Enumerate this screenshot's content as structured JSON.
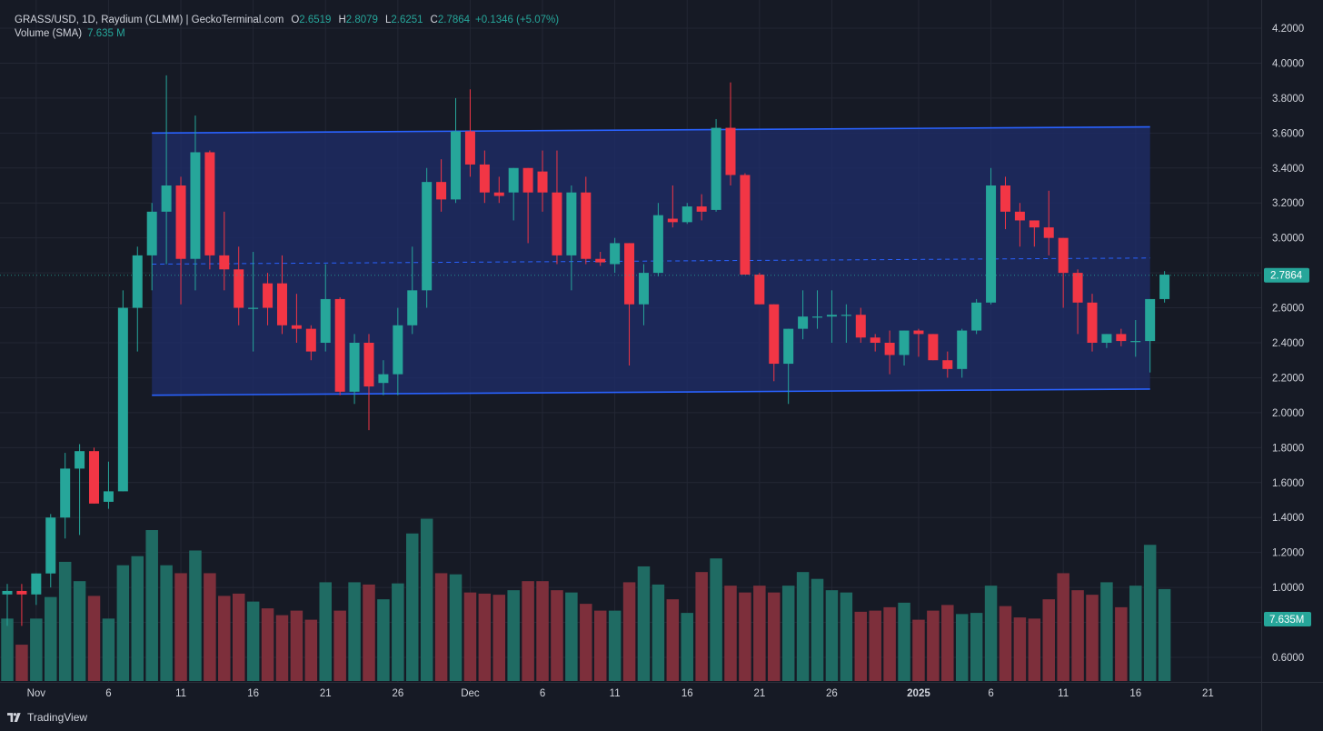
{
  "legend": {
    "title": "GRASS/USD, 1D, Raydium (CLMM) | GeckoTerminal.com",
    "o_label": "O",
    "o_value": "2.6519",
    "h_label": "H",
    "h_value": "2.8079",
    "l_label": "L",
    "l_value": "2.6251",
    "c_label": "C",
    "c_value": "2.7864",
    "change": "+0.1346 (+5.07%)",
    "volume_label": "Volume (SMA)",
    "volume_value": "7.635 M"
  },
  "footer": {
    "brand": "TradingView"
  },
  "colors": {
    "background": "#161a25",
    "up": "#26a69a",
    "down": "#f23645",
    "volume_up": "#1f6b63",
    "volume_down": "#7d2f3b",
    "channel_line": "#2962ff",
    "channel_fill": "#1f2e6b",
    "grid": "#232734",
    "text": "#d1d4dc",
    "price_label_bg": "#26a69a"
  },
  "chart_data": {
    "type": "candlestick",
    "title": "GRASS/USD, 1D, Raydium (CLMM) | GeckoTerminal.com",
    "y_axis": {
      "range": [
        0.46,
        4.26
      ],
      "ticks": [
        "0.6000",
        "0.8000",
        "1.0000",
        "1.2000",
        "1.4000",
        "1.6000",
        "1.8000",
        "2.0000",
        "2.2000",
        "2.4000",
        "2.6000",
        "2.8000",
        "3.0000",
        "3.2000",
        "3.4000",
        "3.6000",
        "3.8000",
        "4.0000",
        "4.2000"
      ],
      "tick_values": [
        0.6,
        0.8,
        1.0,
        1.2,
        1.4,
        1.6,
        1.8,
        2.0,
        2.2,
        2.4,
        2.6,
        2.8,
        3.0,
        3.2,
        3.4,
        3.6,
        3.8,
        4.0,
        4.2
      ]
    },
    "x_axis": {
      "start_date": "2024-10-30",
      "labels": [
        {
          "text": "Nov",
          "day": 2
        },
        {
          "text": "6",
          "day": 7
        },
        {
          "text": "11",
          "day": 12
        },
        {
          "text": "16",
          "day": 17
        },
        {
          "text": "21",
          "day": 22
        },
        {
          "text": "26",
          "day": 27
        },
        {
          "text": "Dec",
          "day": 32
        },
        {
          "text": "6",
          "day": 37
        },
        {
          "text": "11",
          "day": 42
        },
        {
          "text": "16",
          "day": 47
        },
        {
          "text": "21",
          "day": 52
        },
        {
          "text": "26",
          "day": 57
        },
        {
          "text": "2025",
          "day": 63,
          "bold": true
        },
        {
          "text": "6",
          "day": 68
        },
        {
          "text": "11",
          "day": 73
        },
        {
          "text": "16",
          "day": 78
        },
        {
          "text": "21",
          "day": 83
        }
      ]
    },
    "volume_scale_max": 1.33,
    "candles": [
      {
        "o": 0.96,
        "h": 1.02,
        "l": 0.78,
        "c": 0.98,
        "v": 0.55
      },
      {
        "o": 0.98,
        "h": 1.02,
        "l": 0.78,
        "c": 0.96,
        "v": 0.32
      },
      {
        "o": 0.96,
        "h": 1.08,
        "l": 0.9,
        "c": 1.08,
        "v": 0.55
      },
      {
        "o": 1.08,
        "h": 1.42,
        "l": 1.0,
        "c": 1.4,
        "v": 0.74
      },
      {
        "o": 1.4,
        "h": 1.77,
        "l": 1.28,
        "c": 1.68,
        "v": 1.05
      },
      {
        "o": 1.68,
        "h": 1.82,
        "l": 1.3,
        "c": 1.78,
        "v": 0.88
      },
      {
        "o": 1.78,
        "h": 1.8,
        "l": 1.48,
        "c": 1.48,
        "v": 0.75
      },
      {
        "o": 1.49,
        "h": 1.72,
        "l": 1.45,
        "c": 1.55,
        "v": 0.55
      },
      {
        "o": 1.55,
        "h": 2.7,
        "l": 1.55,
        "c": 2.6,
        "v": 1.02
      },
      {
        "o": 2.6,
        "h": 2.95,
        "l": 2.35,
        "c": 2.9,
        "v": 1.1
      },
      {
        "o": 2.9,
        "h": 3.2,
        "l": 2.7,
        "c": 3.15,
        "v": 1.33
      },
      {
        "o": 3.15,
        "h": 3.93,
        "l": 2.85,
        "c": 3.3,
        "v": 1.02
      },
      {
        "o": 3.3,
        "h": 3.35,
        "l": 2.62,
        "c": 2.88,
        "v": 0.95
      },
      {
        "o": 2.88,
        "h": 3.7,
        "l": 2.7,
        "c": 3.49,
        "v": 1.15
      },
      {
        "o": 3.49,
        "h": 3.5,
        "l": 2.82,
        "c": 2.9,
        "v": 0.95
      },
      {
        "o": 2.9,
        "h": 3.15,
        "l": 2.7,
        "c": 2.82,
        "v": 0.75
      },
      {
        "o": 2.82,
        "h": 2.95,
        "l": 2.5,
        "c": 2.6,
        "v": 0.77
      },
      {
        "o": 2.6,
        "h": 2.92,
        "l": 2.35,
        "c": 2.6,
        "v": 0.7
      },
      {
        "o": 2.74,
        "h": 2.8,
        "l": 2.5,
        "c": 2.6,
        "v": 0.64
      },
      {
        "o": 2.74,
        "h": 2.9,
        "l": 2.45,
        "c": 2.5,
        "v": 0.58
      },
      {
        "o": 2.5,
        "h": 2.68,
        "l": 2.4,
        "c": 2.48,
        "v": 0.62
      },
      {
        "o": 2.48,
        "h": 2.5,
        "l": 2.3,
        "c": 2.35,
        "v": 0.54
      },
      {
        "o": 2.4,
        "h": 2.85,
        "l": 2.35,
        "c": 2.65,
        "v": 0.87
      },
      {
        "o": 2.65,
        "h": 2.66,
        "l": 2.1,
        "c": 2.12,
        "v": 0.62
      },
      {
        "o": 2.12,
        "h": 2.45,
        "l": 2.05,
        "c": 2.4,
        "v": 0.87
      },
      {
        "o": 2.4,
        "h": 2.45,
        "l": 1.9,
        "c": 2.15,
        "v": 0.85
      },
      {
        "o": 2.17,
        "h": 2.3,
        "l": 2.1,
        "c": 2.22,
        "v": 0.72
      },
      {
        "o": 2.22,
        "h": 2.6,
        "l": 2.1,
        "c": 2.5,
        "v": 0.86
      },
      {
        "o": 2.5,
        "h": 2.95,
        "l": 2.45,
        "c": 2.7,
        "v": 1.3
      },
      {
        "o": 2.7,
        "h": 3.4,
        "l": 2.6,
        "c": 3.32,
        "v": 1.43
      },
      {
        "o": 3.32,
        "h": 3.45,
        "l": 3.15,
        "c": 3.22,
        "v": 0.95
      },
      {
        "o": 3.22,
        "h": 3.8,
        "l": 3.2,
        "c": 3.61,
        "v": 0.94
      },
      {
        "o": 3.61,
        "h": 3.85,
        "l": 3.35,
        "c": 3.42,
        "v": 0.78
      },
      {
        "o": 3.42,
        "h": 3.5,
        "l": 3.2,
        "c": 3.26,
        "v": 0.77
      },
      {
        "o": 3.26,
        "h": 3.35,
        "l": 3.2,
        "c": 3.24,
        "v": 0.76
      },
      {
        "o": 3.26,
        "h": 3.4,
        "l": 3.1,
        "c": 3.4,
        "v": 0.8
      },
      {
        "o": 3.4,
        "h": 3.4,
        "l": 2.97,
        "c": 3.26,
        "v": 0.88
      },
      {
        "o": 3.38,
        "h": 3.5,
        "l": 3.15,
        "c": 3.26,
        "v": 0.88
      },
      {
        "o": 3.26,
        "h": 3.5,
        "l": 2.85,
        "c": 2.9,
        "v": 0.8
      },
      {
        "o": 2.9,
        "h": 3.3,
        "l": 2.7,
        "c": 3.26,
        "v": 0.78
      },
      {
        "o": 3.26,
        "h": 3.35,
        "l": 2.85,
        "c": 2.88,
        "v": 0.68
      },
      {
        "o": 2.88,
        "h": 2.92,
        "l": 2.84,
        "c": 2.86,
        "v": 0.62
      },
      {
        "o": 2.85,
        "h": 3.0,
        "l": 2.8,
        "c": 2.97,
        "v": 0.62
      },
      {
        "o": 2.97,
        "h": 2.97,
        "l": 2.27,
        "c": 2.62,
        "v": 0.87
      },
      {
        "o": 2.62,
        "h": 2.85,
        "l": 2.5,
        "c": 2.8,
        "v": 1.01
      },
      {
        "o": 2.8,
        "h": 3.2,
        "l": 2.78,
        "c": 3.13,
        "v": 0.85
      },
      {
        "o": 3.11,
        "h": 3.3,
        "l": 3.06,
        "c": 3.09,
        "v": 0.72
      },
      {
        "o": 3.09,
        "h": 3.2,
        "l": 3.08,
        "c": 3.18,
        "v": 0.6
      },
      {
        "o": 3.18,
        "h": 3.25,
        "l": 3.1,
        "c": 3.15,
        "v": 0.96
      },
      {
        "o": 3.16,
        "h": 3.68,
        "l": 3.15,
        "c": 3.63,
        "v": 1.08
      },
      {
        "o": 3.63,
        "h": 3.89,
        "l": 3.3,
        "c": 3.36,
        "v": 0.84
      },
      {
        "o": 3.36,
        "h": 3.37,
        "l": 2.79,
        "c": 2.79,
        "v": 0.78
      },
      {
        "o": 2.79,
        "h": 2.8,
        "l": 2.62,
        "c": 2.62,
        "v": 0.84
      },
      {
        "o": 2.62,
        "h": 2.62,
        "l": 2.18,
        "c": 2.28,
        "v": 0.78
      },
      {
        "o": 2.28,
        "h": 2.48,
        "l": 2.05,
        "c": 2.48,
        "v": 0.84
      },
      {
        "o": 2.48,
        "h": 2.7,
        "l": 2.42,
        "c": 2.55,
        "v": 0.96
      },
      {
        "o": 2.55,
        "h": 2.7,
        "l": 2.48,
        "c": 2.55,
        "v": 0.9
      },
      {
        "o": 2.55,
        "h": 2.7,
        "l": 2.4,
        "c": 2.56,
        "v": 0.8
      },
      {
        "o": 2.56,
        "h": 2.62,
        "l": 2.4,
        "c": 2.56,
        "v": 0.78
      },
      {
        "o": 2.56,
        "h": 2.6,
        "l": 2.4,
        "c": 2.43,
        "v": 0.61
      },
      {
        "o": 2.43,
        "h": 2.45,
        "l": 2.35,
        "c": 2.4,
        "v": 0.62
      },
      {
        "o": 2.4,
        "h": 2.47,
        "l": 2.22,
        "c": 2.33,
        "v": 0.65
      },
      {
        "o": 2.33,
        "h": 2.47,
        "l": 2.27,
        "c": 2.47,
        "v": 0.69
      },
      {
        "o": 2.47,
        "h": 2.48,
        "l": 2.32,
        "c": 2.45,
        "v": 0.54
      },
      {
        "o": 2.45,
        "h": 2.45,
        "l": 2.3,
        "c": 2.3,
        "v": 0.62
      },
      {
        "o": 2.3,
        "h": 2.35,
        "l": 2.2,
        "c": 2.25,
        "v": 0.67
      },
      {
        "o": 2.25,
        "h": 2.48,
        "l": 2.2,
        "c": 2.47,
        "v": 0.59
      },
      {
        "o": 2.47,
        "h": 2.65,
        "l": 2.45,
        "c": 2.63,
        "v": 0.6
      },
      {
        "o": 2.63,
        "h": 3.4,
        "l": 2.62,
        "c": 3.3,
        "v": 0.84
      },
      {
        "o": 3.3,
        "h": 3.35,
        "l": 3.05,
        "c": 3.15,
        "v": 0.66
      },
      {
        "o": 3.15,
        "h": 3.2,
        "l": 2.95,
        "c": 3.1,
        "v": 0.56
      },
      {
        "o": 3.1,
        "h": 3.1,
        "l": 2.95,
        "c": 3.06,
        "v": 0.55
      },
      {
        "o": 3.06,
        "h": 3.27,
        "l": 2.9,
        "c": 3.0,
        "v": 0.72
      },
      {
        "o": 3.0,
        "h": 3.0,
        "l": 2.6,
        "c": 2.8,
        "v": 0.95
      },
      {
        "o": 2.8,
        "h": 2.82,
        "l": 2.45,
        "c": 2.63,
        "v": 0.8
      },
      {
        "o": 2.63,
        "h": 2.68,
        "l": 2.35,
        "c": 2.4,
        "v": 0.76
      },
      {
        "o": 2.4,
        "h": 2.45,
        "l": 2.37,
        "c": 2.45,
        "v": 0.87
      },
      {
        "o": 2.45,
        "h": 2.48,
        "l": 2.38,
        "c": 2.41,
        "v": 0.65
      },
      {
        "o": 2.41,
        "h": 2.53,
        "l": 2.32,
        "c": 2.41,
        "v": 0.84
      },
      {
        "o": 2.41,
        "h": 2.65,
        "l": 2.23,
        "c": 2.65,
        "v": 1.2
      },
      {
        "o": 2.65,
        "h": 2.81,
        "l": 2.63,
        "c": 2.79,
        "v": 0.81
      }
    ],
    "channel": {
      "top": {
        "start": {
          "day": 10,
          "value": 3.6
        },
        "end": {
          "day": 79,
          "value": 3.635
        }
      },
      "bottom": {
        "start": {
          "day": 10,
          "value": 2.1
        },
        "end": {
          "day": 79,
          "value": 2.135
        }
      },
      "mid": {
        "start": {
          "day": 10,
          "value": 2.85
        },
        "end": {
          "day": 79,
          "value": 2.885
        }
      }
    },
    "last_price": {
      "value": 2.7864,
      "label": "2.7864"
    },
    "volume_sma": {
      "label": "7.635M"
    }
  }
}
